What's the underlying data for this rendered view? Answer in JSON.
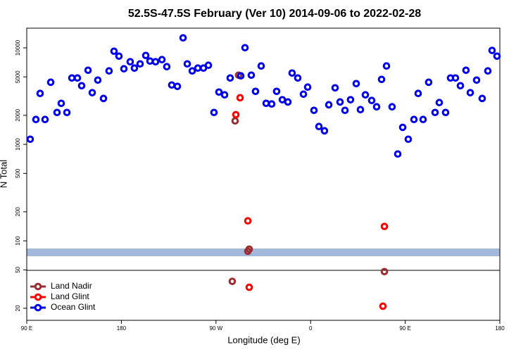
{
  "chart_data": {
    "type": "scatter",
    "title": "52.5S-47.5S February (Ver 10)   2014-09-06 to 2022-02-28",
    "x_label": "Longitude (deg E)",
    "y_label": "N Total",
    "log_y": true,
    "xlim": [
      90,
      540
    ],
    "xticks": [
      {
        "value": 90,
        "label": "90 E"
      },
      180,
      {
        "value": 270,
        "label": "90 W"
      },
      {
        "value": 360,
        "label": "0"
      },
      {
        "value": 450,
        "label": "90 E"
      },
      {
        "value": 540,
        "label": "180"
      }
    ],
    "ylim": [
      15,
      16000
    ],
    "yticks": [
      20,
      50,
      100,
      200,
      500,
      1000,
      2000,
      5000,
      10000
    ],
    "legend": "bottom-left",
    "series": [
      {
        "name": "Land Nadir",
        "color": "#9b2d30",
        "x": [
          288.2,
          291.5,
          300.3,
          301.6,
          285.5,
          430.2
        ],
        "values": [
          1750,
          5210,
          78,
          82,
          38,
          48
        ]
      },
      {
        "name": "Land Glint",
        "color": "#ff0000",
        "x": [
          288.9,
          292.9,
          300.3,
          301.6,
          430.2,
          428.8
        ],
        "values": [
          2030,
          3040,
          161,
          33,
          141,
          21
        ]
      },
      {
        "name": "Ocean Glint",
        "color": "#0000ee",
        "x": [
          93.3,
          98.7,
          102.7,
          107.4,
          112.8,
          118.8,
          122.8,
          128.2,
          132.9,
          138.2,
          142.2,
          148.3,
          152.3,
          157.6,
          163.0,
          168.3,
          173.0,
          177.7,
          182.4,
          188.4,
          192.4,
          197.8,
          203.2,
          207.2,
          212.5,
          218.6,
          223.2,
          227.9,
          233.3,
          238.7,
          242.7,
          247.4,
          252.7,
          258.1,
          262.8,
          268.1,
          272.8,
          278.2,
          283.5,
          293.6,
          297.6,
          303.6,
          307.6,
          313.0,
          317.7,
          323.0,
          327.7,
          333.1,
          338.4,
          342.4,
          347.8,
          353.2,
          357.2,
          363.2,
          367.9,
          373.2,
          377.3,
          383.3,
          388.0,
          392.7,
          398.0,
          403.4,
          407.4,
          412.1,
          418.1,
          422.8,
          427.5,
          432.2,
          437.5,
          442.9,
          447.6,
          452.9,
          458.3,
          462.3,
          467.0,
          472.3,
          478.4,
          482.4,
          488.4,
          493.1,
          497.8,
          502.5,
          507.8,
          511.9,
          517.9,
          523.2,
          528.6,
          532.6,
          537.3
        ],
        "values": [
          1130,
          1810,
          3370,
          1810,
          4400,
          2140,
          2660,
          2140,
          4870,
          4870,
          4050,
          5860,
          3430,
          4630,
          2990,
          5770,
          9230,
          8200,
          6070,
          7180,
          6170,
          6820,
          8340,
          7300,
          7180,
          7550,
          6380,
          4120,
          3990,
          12700,
          6820,
          5770,
          6170,
          6170,
          6600,
          2140,
          3480,
          3260,
          4870,
          5130,
          10040,
          5210,
          3540,
          6490,
          2660,
          2620,
          3540,
          2900,
          2750,
          5480,
          4870,
          3310,
          3920,
          2250,
          1530,
          1380,
          2570,
          3850,
          2750,
          2250,
          2900,
          4260,
          2290,
          3260,
          2850,
          2450,
          4710,
          6490,
          2450,
          794,
          1500,
          1130,
          1810,
          3370,
          1810,
          4400,
          2140,
          2710,
          2140,
          4870,
          4870,
          4050,
          5860,
          3430,
          4630,
          2990,
          5770,
          9400,
          8200
        ]
      }
    ]
  }
}
